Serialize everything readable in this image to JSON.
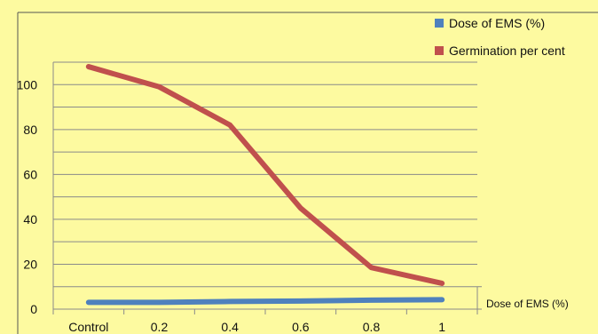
{
  "chart_data": {
    "type": "line",
    "categories": [
      "Control",
      "0.2",
      "0.4",
      "0.6",
      "0.8",
      "1"
    ],
    "series": [
      {
        "name": "Dose of EMS (%)",
        "color": "#4f81bd",
        "values": [
          3,
          3,
          3.4,
          3.6,
          4,
          4.2
        ]
      },
      {
        "name": "Germination per cent",
        "color": "#c0504d",
        "values": [
          108,
          99,
          82,
          45,
          18.5,
          11.5
        ]
      }
    ],
    "yticks": [
      0,
      20,
      40,
      60,
      80,
      100
    ],
    "ylim": [
      0,
      110
    ],
    "grid": true,
    "legend_position": "top-right",
    "table_label": "Dose of EMS (%)"
  }
}
